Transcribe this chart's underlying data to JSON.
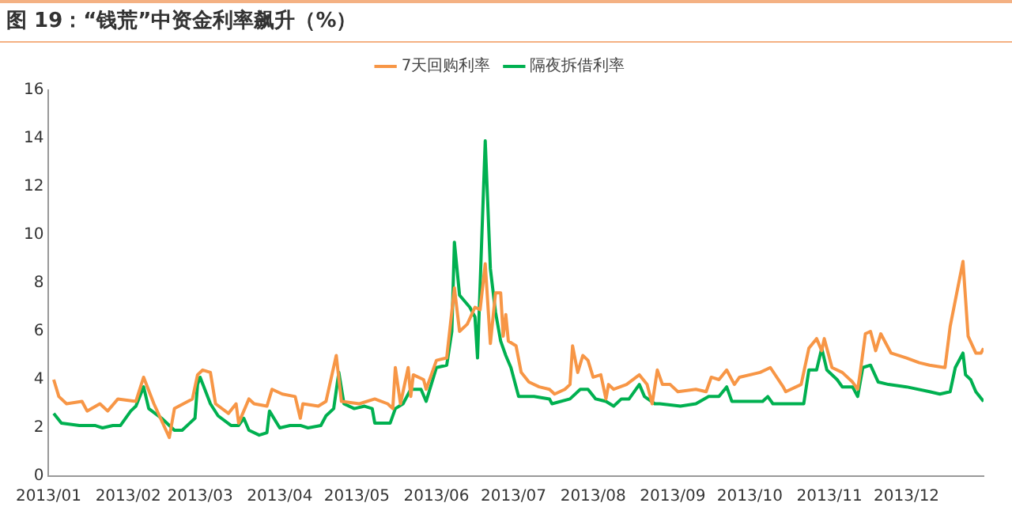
{
  "chart_data": {
    "type": "line",
    "title": "图 19：“钱荒”中资金利率飙升（%）",
    "legend": "top",
    "grid": false,
    "marker": "none",
    "line_style": "solid",
    "ylim": [
      0,
      16
    ],
    "yticks": [
      0,
      2,
      4,
      6,
      8,
      10,
      12,
      14,
      16
    ],
    "xlim": [
      "2013-01-01",
      "2013-12-31"
    ],
    "xticks": [
      {
        "value": "2013-01-01",
        "label": "2013/01"
      },
      {
        "value": "2013-02-01",
        "label": "2013/02"
      },
      {
        "value": "2013-03-01",
        "label": "2013/03"
      },
      {
        "value": "2013-04-01",
        "label": "2013/04"
      },
      {
        "value": "2013-05-01",
        "label": "2013/05"
      },
      {
        "value": "2013-06-01",
        "label": "2013/06"
      },
      {
        "value": "2013-07-01",
        "label": "2013/07"
      },
      {
        "value": "2013-08-01",
        "label": "2013/08"
      },
      {
        "value": "2013-09-01",
        "label": "2013/09"
      },
      {
        "value": "2013-10-01",
        "label": "2013/10"
      },
      {
        "value": "2013-11-01",
        "label": "2013/11"
      },
      {
        "value": "2013-12-01",
        "label": "2013/12"
      }
    ],
    "series": [
      {
        "name": "7天回购利率",
        "color": "#f79646",
        "x": [
          "2013-01-03",
          "2013-01-05",
          "2013-01-08",
          "2013-01-14",
          "2013-01-16",
          "2013-01-21",
          "2013-01-24",
          "2013-01-28",
          "2013-02-04",
          "2013-02-07",
          "2013-02-11",
          "2013-02-17",
          "2013-02-19",
          "2013-02-26",
          "2013-02-28",
          "2013-03-02",
          "2013-03-05",
          "2013-03-07",
          "2013-03-12",
          "2013-03-15",
          "2013-03-16",
          "2013-03-20",
          "2013-03-22",
          "2013-03-27",
          "2013-03-29",
          "2013-04-02",
          "2013-04-07",
          "2013-04-09",
          "2013-04-10",
          "2013-04-16",
          "2013-04-19",
          "2013-04-23",
          "2013-04-25",
          "2013-05-02",
          "2013-05-08",
          "2013-05-13",
          "2013-05-15",
          "2013-05-16",
          "2013-05-18",
          "2013-05-21",
          "2013-05-22",
          "2013-05-23",
          "2013-05-27",
          "2013-05-28",
          "2013-06-01",
          "2013-06-05",
          "2013-06-08",
          "2013-06-10",
          "2013-06-13",
          "2013-06-16",
          "2013-06-18",
          "2013-06-20",
          "2013-06-22",
          "2013-06-24",
          "2013-06-26",
          "2013-06-27",
          "2013-06-28",
          "2013-06-29",
          "2013-07-02",
          "2013-07-04",
          "2013-07-07",
          "2013-07-11",
          "2013-07-15",
          "2013-07-17",
          "2013-07-21",
          "2013-07-23",
          "2013-07-24",
          "2013-07-26",
          "2013-07-28",
          "2013-07-30",
          "2013-08-01",
          "2013-08-04",
          "2013-08-06",
          "2013-08-07",
          "2013-08-09",
          "2013-08-14",
          "2013-08-19",
          "2013-08-22",
          "2013-08-24",
          "2013-08-26",
          "2013-08-28",
          "2013-08-31",
          "2013-09-03",
          "2013-09-10",
          "2013-09-14",
          "2013-09-16",
          "2013-09-19",
          "2013-09-22",
          "2013-09-25",
          "2013-09-27",
          "2013-10-05",
          "2013-10-09",
          "2013-10-14",
          "2013-10-15",
          "2013-10-21",
          "2013-10-24",
          "2013-10-27",
          "2013-10-29",
          "2013-10-30",
          "2013-11-02",
          "2013-11-06",
          "2013-11-10",
          "2013-11-12",
          "2013-11-13",
          "2013-11-15",
          "2013-11-17",
          "2013-11-19",
          "2013-11-21",
          "2013-11-25",
          "2013-12-01",
          "2013-12-06",
          "2013-12-10",
          "2013-12-16",
          "2013-12-18",
          "2013-12-23",
          "2013-12-25",
          "2013-12-28",
          "2013-12-30",
          "2013-12-31"
        ],
        "values": [
          4.0,
          3.3,
          3.0,
          3.1,
          2.7,
          3.0,
          2.7,
          3.2,
          3.1,
          4.1,
          3.0,
          1.6,
          2.8,
          3.2,
          4.2,
          4.4,
          4.3,
          3.0,
          2.6,
          3.0,
          2.2,
          3.2,
          3.0,
          2.9,
          3.6,
          3.4,
          3.3,
          2.4,
          3.0,
          2.9,
          3.1,
          5.0,
          3.1,
          3.0,
          3.2,
          3.0,
          2.8,
          4.5,
          3.0,
          4.5,
          3.3,
          4.2,
          4.0,
          3.6,
          4.8,
          4.9,
          7.8,
          6.0,
          6.3,
          7.0,
          6.9,
          8.8,
          5.5,
          7.6,
          7.6,
          5.8,
          6.7,
          5.6,
          5.4,
          4.3,
          3.9,
          3.7,
          3.6,
          3.4,
          3.6,
          3.8,
          5.4,
          4.3,
          5.0,
          4.8,
          4.1,
          4.2,
          3.2,
          3.8,
          3.6,
          3.8,
          4.2,
          3.8,
          3.0,
          4.4,
          3.8,
          3.8,
          3.5,
          3.6,
          3.5,
          4.1,
          4.0,
          4.4,
          3.8,
          4.1,
          4.3,
          4.5,
          3.7,
          3.5,
          3.8,
          5.3,
          5.7,
          5.2,
          5.7,
          4.5,
          4.3,
          3.9,
          3.6,
          4.3,
          5.9,
          6.0,
          5.2,
          5.9,
          5.1,
          4.9,
          4.7,
          4.6,
          4.5,
          6.2,
          8.9,
          5.8,
          5.1,
          5.1,
          5.3
        ]
      },
      {
        "name": "隔夜拆借利率",
        "color": "#00b050",
        "x": [
          "2013-01-03",
          "2013-01-06",
          "2013-01-13",
          "2013-01-19",
          "2013-01-22",
          "2013-01-26",
          "2013-01-29",
          "2013-02-02",
          "2013-02-04",
          "2013-02-07",
          "2013-02-09",
          "2013-02-14",
          "2013-02-19",
          "2013-02-22",
          "2013-02-25",
          "2013-02-27",
          "2013-02-28",
          "2013-03-01",
          "2013-03-05",
          "2013-03-08",
          "2013-03-13",
          "2013-03-16",
          "2013-03-18",
          "2013-03-20",
          "2013-03-24",
          "2013-03-27",
          "2013-03-28",
          "2013-04-01",
          "2013-04-05",
          "2013-04-09",
          "2013-04-12",
          "2013-04-17",
          "2013-04-19",
          "2013-04-22",
          "2013-04-24",
          "2013-04-26",
          "2013-04-30",
          "2013-05-04",
          "2013-05-07",
          "2013-05-08",
          "2013-05-14",
          "2013-05-16",
          "2013-05-19",
          "2013-05-22",
          "2013-05-26",
          "2013-05-28",
          "2013-06-01",
          "2013-06-05",
          "2013-06-07",
          "2013-06-08",
          "2013-06-10",
          "2013-06-14",
          "2013-06-16",
          "2013-06-17",
          "2013-06-20",
          "2013-06-22",
          "2013-06-24",
          "2013-06-26",
          "2013-06-28",
          "2013-06-30",
          "2013-07-03",
          "2013-07-05",
          "2013-07-09",
          "2013-07-15",
          "2013-07-16",
          "2013-07-23",
          "2013-07-27",
          "2013-07-30",
          "2013-08-02",
          "2013-08-06",
          "2013-08-09",
          "2013-08-12",
          "2013-08-15",
          "2013-08-19",
          "2013-08-21",
          "2013-08-25",
          "2013-08-27",
          "2013-09-04",
          "2013-09-10",
          "2013-09-15",
          "2013-09-19",
          "2013-09-22",
          "2013-09-24",
          "2013-10-06",
          "2013-10-08",
          "2013-10-10",
          "2013-10-18",
          "2013-10-22",
          "2013-10-24",
          "2013-10-27",
          "2013-10-29",
          "2013-10-31",
          "2013-11-04",
          "2013-11-06",
          "2013-11-10",
          "2013-11-12",
          "2013-11-14",
          "2013-11-17",
          "2013-11-20",
          "2013-11-24",
          "2013-12-01",
          "2013-12-10",
          "2013-12-14",
          "2013-12-18",
          "2013-12-20",
          "2013-12-23",
          "2013-12-24",
          "2013-12-26",
          "2013-12-28",
          "2013-12-31"
        ],
        "values": [
          2.6,
          2.2,
          2.1,
          2.1,
          2.0,
          2.1,
          2.1,
          2.7,
          2.9,
          3.7,
          2.8,
          2.4,
          1.9,
          1.9,
          2.2,
          2.4,
          3.8,
          4.1,
          3.0,
          2.5,
          2.1,
          2.1,
          2.4,
          1.9,
          1.7,
          1.8,
          2.7,
          2.0,
          2.1,
          2.1,
          2.0,
          2.1,
          2.5,
          2.8,
          4.3,
          3.0,
          2.8,
          2.9,
          2.8,
          2.2,
          2.2,
          2.8,
          3.0,
          3.6,
          3.6,
          3.1,
          4.5,
          4.6,
          6.0,
          9.7,
          7.5,
          7.0,
          6.6,
          4.9,
          13.9,
          8.6,
          6.8,
          5.6,
          5.0,
          4.5,
          3.3,
          3.3,
          3.3,
          3.2,
          3.0,
          3.2,
          3.6,
          3.6,
          3.2,
          3.1,
          2.9,
          3.2,
          3.2,
          3.8,
          3.3,
          3.0,
          3.0,
          2.9,
          3.0,
          3.3,
          3.3,
          3.7,
          3.1,
          3.1,
          3.3,
          3.0,
          3.0,
          3.0,
          4.4,
          4.4,
          5.3,
          4.4,
          4.0,
          3.7,
          3.7,
          3.3,
          4.5,
          4.6,
          3.9,
          3.8,
          3.7,
          3.5,
          3.4,
          3.5,
          4.5,
          5.1,
          4.2,
          4.0,
          3.5,
          3.1
        ]
      }
    ]
  }
}
